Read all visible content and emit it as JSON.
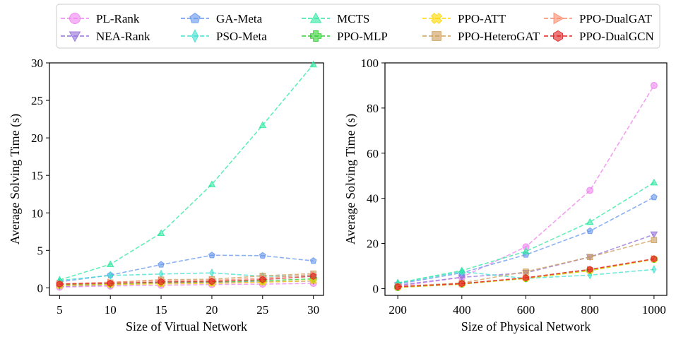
{
  "legend": [
    {
      "name": "PL-Rank",
      "color": "#ee82ee",
      "marker": "circle"
    },
    {
      "name": "NEA-Rank",
      "color": "#9370db",
      "marker": "tri-down"
    },
    {
      "name": "GA-Meta",
      "color": "#6495ed",
      "marker": "pentagon"
    },
    {
      "name": "PSO-Meta",
      "color": "#40e0d0",
      "marker": "thin-diamond"
    },
    {
      "name": "MCTS",
      "color": "#2ee8a0",
      "marker": "tri-up"
    },
    {
      "name": "PPO-MLP",
      "color": "#32cd32",
      "marker": "plus"
    },
    {
      "name": "PPO-ATT",
      "color": "#ffd700",
      "marker": "x-filled"
    },
    {
      "name": "PPO-HeteroGAT",
      "color": "#cd9d5a",
      "marker": "square"
    },
    {
      "name": "PPO-DualGAT",
      "color": "#fa8a6a",
      "marker": "tri-right"
    },
    {
      "name": "PPO-DualGCN",
      "color": "#e02020",
      "marker": "hexagon"
    }
  ],
  "chart_data": [
    {
      "type": "line",
      "xlabel": "Size of Virtual Network",
      "ylabel": "Average Solving Time (s)",
      "x": [
        5,
        10,
        15,
        20,
        25,
        30
      ],
      "xticks": [
        "5",
        "10",
        "15",
        "20",
        "25",
        "30"
      ],
      "yticks": [
        "0",
        "5",
        "10",
        "15",
        "20",
        "25",
        "30"
      ],
      "xlim": [
        4,
        31
      ],
      "ylim": [
        -1,
        30
      ],
      "series": [
        {
          "name": "PL-Rank",
          "values": [
            0.1,
            0.25,
            0.35,
            0.45,
            0.5,
            0.6
          ]
        },
        {
          "name": "NEA-Rank",
          "values": [
            0.2,
            0.4,
            0.6,
            0.7,
            0.8,
            0.9
          ]
        },
        {
          "name": "GA-Meta",
          "values": [
            0.8,
            1.7,
            3.1,
            4.35,
            4.3,
            3.6
          ]
        },
        {
          "name": "PSO-Meta",
          "values": [
            1.0,
            1.65,
            1.85,
            2.0,
            1.55,
            1.6
          ]
        },
        {
          "name": "MCTS",
          "values": [
            1.05,
            3.15,
            7.3,
            13.8,
            21.7,
            29.8
          ]
        },
        {
          "name": "PPO-MLP",
          "values": [
            0.4,
            0.5,
            0.75,
            0.8,
            0.95,
            1.2
          ]
        },
        {
          "name": "PPO-ATT",
          "values": [
            0.3,
            0.45,
            0.55,
            0.6,
            0.75,
            0.95
          ]
        },
        {
          "name": "PPO-HeteroGAT",
          "values": [
            0.5,
            0.7,
            1.1,
            1.15,
            1.6,
            1.9
          ]
        },
        {
          "name": "PPO-DualGAT",
          "values": [
            0.55,
            0.75,
            1.0,
            1.0,
            1.3,
            1.75
          ]
        },
        {
          "name": "PPO-DualGCN",
          "values": [
            0.5,
            0.6,
            0.8,
            0.85,
            1.1,
            1.55
          ]
        }
      ]
    },
    {
      "type": "line",
      "xlabel": "Size of Physical Network",
      "ylabel": "Average Solving Time (s)",
      "x": [
        200,
        400,
        600,
        800,
        1000
      ],
      "xticks": [
        "200",
        "400",
        "600",
        "800",
        "1000"
      ],
      "yticks": [
        "0",
        "20",
        "40",
        "60",
        "80",
        "100"
      ],
      "xlim": [
        160,
        1040
      ],
      "ylim": [
        -3,
        100
      ],
      "series": [
        {
          "name": "PL-Rank",
          "values": [
            1.0,
            5.0,
            18.5,
            43.5,
            90.0
          ]
        },
        {
          "name": "NEA-Rank",
          "values": [
            1.5,
            5.0,
            7.0,
            14.0,
            24.0
          ]
        },
        {
          "name": "GA-Meta",
          "values": [
            2.0,
            7.0,
            15.0,
            25.5,
            40.5
          ]
        },
        {
          "name": "PSO-Meta",
          "values": [
            2.5,
            7.5,
            4.5,
            6.0,
            8.5
          ]
        },
        {
          "name": "MCTS",
          "values": [
            2.5,
            8.0,
            16.5,
            29.5,
            47.0
          ]
        },
        {
          "name": "PPO-MLP",
          "values": [
            0.5,
            2.0,
            4.5,
            8.0,
            13.0
          ]
        },
        {
          "name": "PPO-ATT",
          "values": [
            0.5,
            2.0,
            4.5,
            8.0,
            13.0
          ]
        },
        {
          "name": "PPO-HeteroGAT",
          "values": [
            1.0,
            2.5,
            7.5,
            14.0,
            21.5
          ]
        },
        {
          "name": "PPO-DualGAT",
          "values": [
            0.8,
            2.2,
            4.8,
            8.5,
            13.2
          ]
        },
        {
          "name": "PPO-DualGCN",
          "values": [
            0.8,
            2.2,
            4.8,
            8.5,
            13.2
          ]
        }
      ]
    }
  ]
}
